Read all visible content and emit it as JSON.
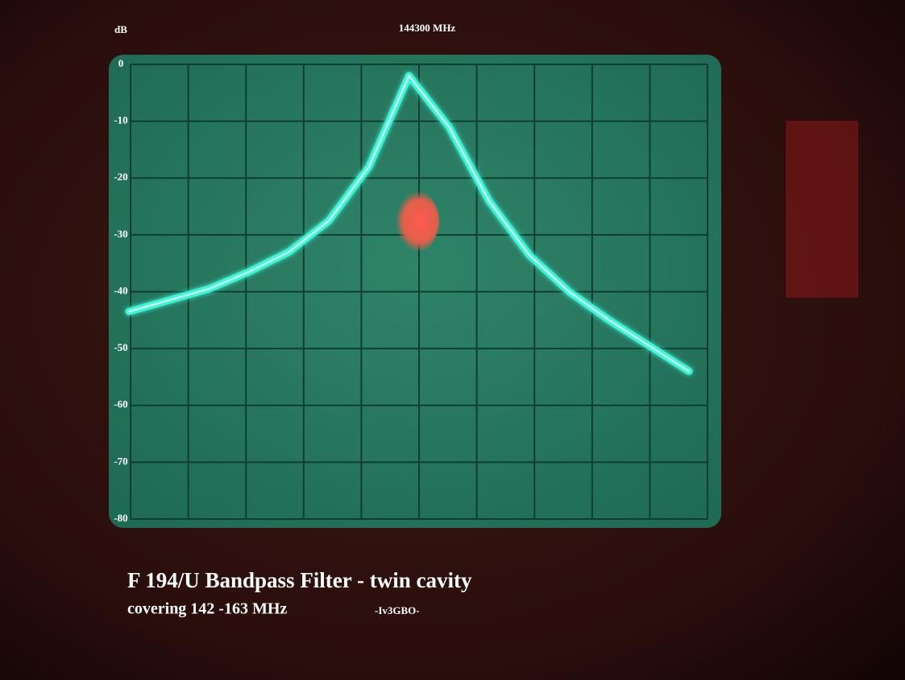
{
  "chart_data": {
    "type": "line",
    "title": "F 194/U Bandpass Filter - twin cavity",
    "subtitle": "covering 142 -163 MHz",
    "credit": "-Iv3GBO-",
    "y_label": "dB",
    "center_label": "144300 MHz",
    "categories": [
      null,
      null,
      null,
      null,
      null,
      null,
      null,
      null,
      null,
      null,
      null,
      null,
      null,
      null,
      null
    ],
    "series": [
      {
        "name": null,
        "color": "#3df5d6",
        "values": [
          -43.5,
          -41.5,
          -39.5,
          -36.5,
          -33,
          -27.5,
          -18,
          -2,
          -11,
          -24,
          -33.5,
          -40,
          -45,
          -49.5,
          -54
        ]
      }
    ],
    "ylim": [
      -80,
      0
    ],
    "yticks": [
      0,
      -10,
      -20,
      -30,
      -40,
      -50,
      -60,
      -70,
      -80
    ],
    "grid": true
  }
}
